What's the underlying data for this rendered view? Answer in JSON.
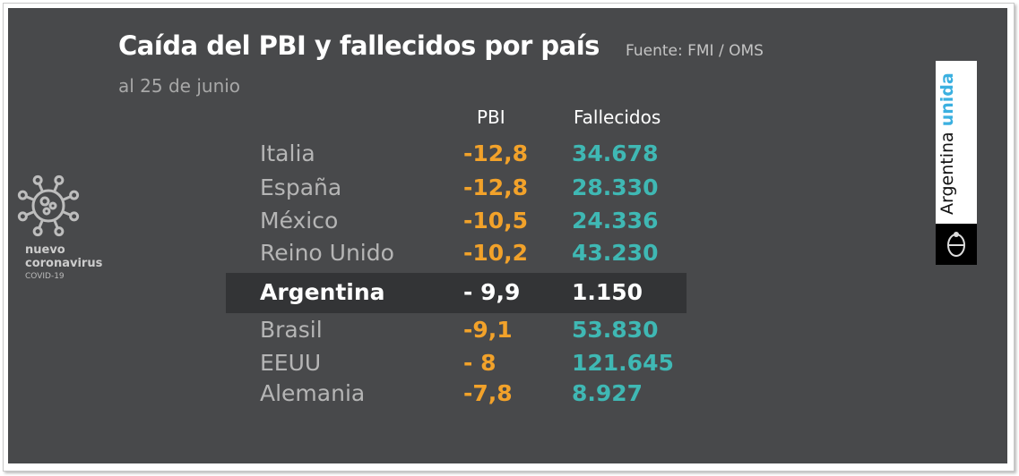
{
  "title": "Caída del PBI y fallecidos por país",
  "source": "Fuente: FMI / OMS",
  "subtitle": "al 25 de junio",
  "columns": {
    "pbi": "PBI",
    "deaths": "Fallecidos"
  },
  "rows": [
    {
      "country": "Italia",
      "pbi": "-12,8",
      "deaths": "34.678"
    },
    {
      "country": "España",
      "pbi": "-12,8",
      "deaths": "28.330"
    },
    {
      "country": "México",
      "pbi": "-10,5",
      "deaths": "24.336"
    },
    {
      "country": "Reino Unido",
      "pbi": "-10,2",
      "deaths": "43.230"
    },
    {
      "country": "Argentina",
      "pbi": "- 9,9",
      "deaths": "1.150",
      "highlight": true
    },
    {
      "country": "Brasil",
      "pbi": "-9,1",
      "deaths": "53.830"
    },
    {
      "country": "EEUU",
      "pbi": "- 8",
      "deaths": "121.645"
    },
    {
      "country": "Alemania",
      "pbi": "-7,8",
      "deaths": "8.927"
    }
  ],
  "virus_logo": {
    "line1": "nuevo",
    "line2": "coronavirus",
    "line3": "COVID-19",
    "icon": "virus-icon"
  },
  "brand": {
    "word1": "Argentina",
    "word2": "unida",
    "icon": "coat-of-arms-icon"
  },
  "colors": {
    "background": "#48494b",
    "pbi": "#f2a22a",
    "deaths": "#3fb8b4",
    "highlight": "#333436",
    "brand_accent": "#3bb0e0"
  }
}
